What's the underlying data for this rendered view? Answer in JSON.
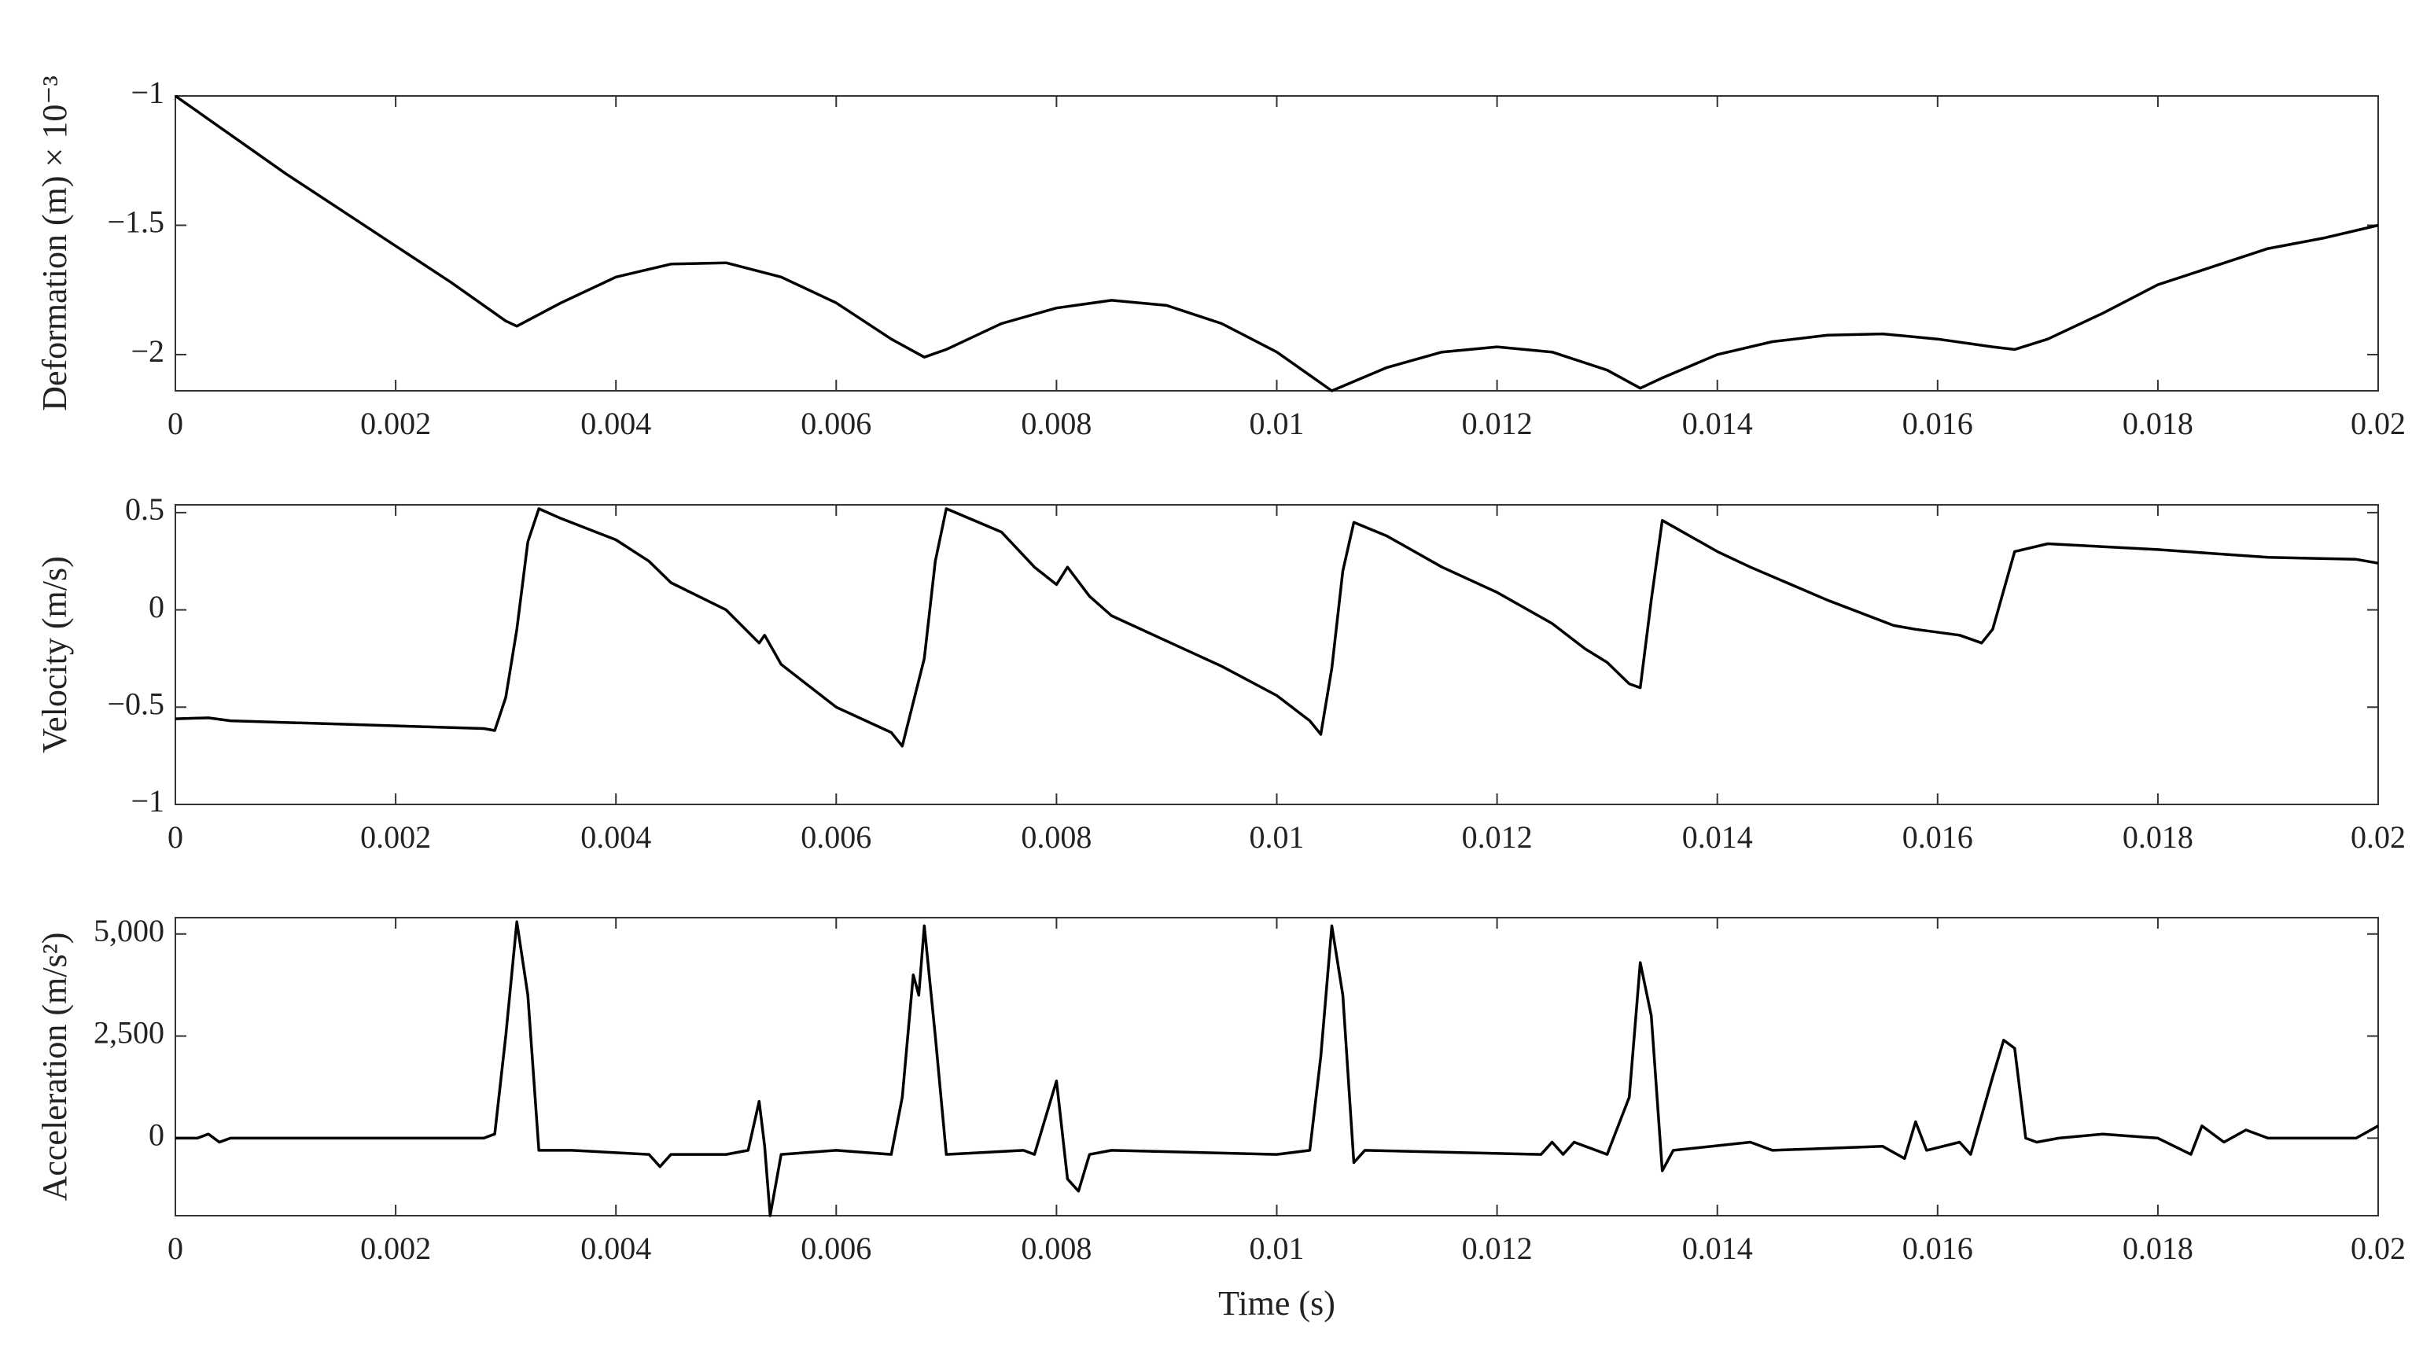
{
  "chart_data": [
    {
      "type": "line",
      "ylabel": "Deformation (m) × 10⁻³",
      "color": "#000000",
      "x": [
        0,
        0.0005,
        0.001,
        0.0015,
        0.002,
        0.0025,
        0.003,
        0.0031,
        0.0035,
        0.004,
        0.0045,
        0.005,
        0.0055,
        0.006,
        0.0065,
        0.0068,
        0.007,
        0.0075,
        0.008,
        0.0085,
        0.009,
        0.0095,
        0.01,
        0.0105,
        0.011,
        0.0115,
        0.012,
        0.0125,
        0.013,
        0.0133,
        0.0135,
        0.014,
        0.0145,
        0.015,
        0.0155,
        0.016,
        0.0165,
        0.0167,
        0.017,
        0.0175,
        0.018,
        0.0185,
        0.019,
        0.0195,
        0.02
      ],
      "values": [
        -1.0,
        -1.15,
        -1.3,
        -1.44,
        -1.58,
        -1.72,
        -1.87,
        -1.89,
        -1.8,
        -1.7,
        -1.65,
        -1.645,
        -1.7,
        -1.8,
        -1.94,
        -2.01,
        -1.98,
        -1.88,
        -1.82,
        -1.79,
        -1.81,
        -1.88,
        -1.99,
        -2.14,
        -2.05,
        -1.99,
        -1.97,
        -1.99,
        -2.06,
        -2.13,
        -2.09,
        -2.0,
        -1.95,
        -1.925,
        -1.92,
        -1.94,
        -1.97,
        -1.98,
        -1.94,
        -1.84,
        -1.73,
        -1.66,
        -1.59,
        -1.55,
        -1.5
      ],
      "xlim": [
        0,
        0.02
      ],
      "xticks": [
        0,
        0.002,
        0.004,
        0.006,
        0.008,
        0.01,
        0.012,
        0.014,
        0.016,
        0.018,
        0.02
      ],
      "ylim": [
        -2.14,
        -1
      ],
      "yticks": [
        {
          "value": -2,
          "label": "−2"
        },
        {
          "value": -1.5,
          "label": "−1.5"
        },
        {
          "value": -1,
          "label": "−1"
        }
      ]
    },
    {
      "type": "line",
      "ylabel": "Velocity (m/s)",
      "color": "#000000",
      "x": [
        0,
        0.0003,
        0.0005,
        0.0028,
        0.0029,
        0.003,
        0.0031,
        0.0032,
        0.0033,
        0.0035,
        0.004,
        0.0043,
        0.0045,
        0.005,
        0.0053,
        0.00535,
        0.0055,
        0.006,
        0.0065,
        0.0066,
        0.0068,
        0.0069,
        0.007,
        0.0075,
        0.0078,
        0.008,
        0.0081,
        0.0083,
        0.0085,
        0.009,
        0.0095,
        0.01,
        0.0103,
        0.0104,
        0.0105,
        0.0106,
        0.0107,
        0.011,
        0.0115,
        0.012,
        0.0125,
        0.0128,
        0.013,
        0.0132,
        0.0133,
        0.0134,
        0.0135,
        0.014,
        0.0143,
        0.015,
        0.0156,
        0.0158,
        0.0162,
        0.0164,
        0.0165,
        0.0167,
        0.017,
        0.018,
        0.019,
        0.0198,
        0.02
      ],
      "values": [
        -0.56,
        -0.555,
        -0.57,
        -0.61,
        -0.62,
        -0.45,
        -0.1,
        0.35,
        0.52,
        0.47,
        0.36,
        0.25,
        0.14,
        0.0,
        -0.17,
        -0.13,
        -0.28,
        -0.5,
        -0.63,
        -0.7,
        -0.25,
        0.25,
        0.52,
        0.4,
        0.22,
        0.13,
        0.22,
        0.07,
        -0.03,
        -0.16,
        -0.29,
        -0.44,
        -0.57,
        -0.64,
        -0.3,
        0.2,
        0.45,
        0.38,
        0.22,
        0.09,
        -0.07,
        -0.2,
        -0.27,
        -0.38,
        -0.4,
        0.05,
        0.46,
        0.3,
        0.22,
        0.05,
        -0.08,
        -0.1,
        -0.13,
        -0.17,
        -0.1,
        0.3,
        0.34,
        0.31,
        0.27,
        0.26,
        0.24
      ],
      "xlim": [
        0,
        0.02
      ],
      "xticks": [
        0,
        0.002,
        0.004,
        0.006,
        0.008,
        0.01,
        0.012,
        0.014,
        0.016,
        0.018,
        0.02
      ],
      "ylim": [
        -1,
        0.54
      ],
      "yticks": [
        {
          "value": -1,
          "label": "−1"
        },
        {
          "value": -0.5,
          "label": "−0.5"
        },
        0,
        0.5
      ]
    },
    {
      "type": "line",
      "ylabel": "Acceleration (m/s²)",
      "xlabel": "Time (s)",
      "color": "#000000",
      "x": [
        0,
        0.0002,
        0.0003,
        0.0004,
        0.0005,
        0.0028,
        0.0029,
        0.003,
        0.0031,
        0.0032,
        0.0033,
        0.0036,
        0.0043,
        0.0044,
        0.0045,
        0.005,
        0.0052,
        0.0053,
        0.00535,
        0.0054,
        0.0055,
        0.006,
        0.0065,
        0.0066,
        0.0067,
        0.00675,
        0.0068,
        0.0069,
        0.007,
        0.0077,
        0.0078,
        0.008,
        0.0081,
        0.0082,
        0.0083,
        0.0085,
        0.01,
        0.0103,
        0.0104,
        0.0105,
        0.0106,
        0.0107,
        0.0108,
        0.0124,
        0.0125,
        0.0126,
        0.0127,
        0.013,
        0.0132,
        0.0133,
        0.0134,
        0.0135,
        0.0136,
        0.0143,
        0.0145,
        0.0155,
        0.0157,
        0.0158,
        0.0159,
        0.0162,
        0.0163,
        0.0165,
        0.0166,
        0.0167,
        0.0168,
        0.0169,
        0.0171,
        0.0175,
        0.018,
        0.0183,
        0.0184,
        0.0186,
        0.0188,
        0.019,
        0.0198,
        0.02
      ],
      "values": [
        0,
        0,
        100,
        -100,
        0,
        0,
        100,
        2500,
        5300,
        3500,
        -300,
        -300,
        -400,
        -700,
        -400,
        -400,
        -300,
        900,
        -200,
        -1900,
        -400,
        -300,
        -400,
        1000,
        4000,
        3500,
        5200,
        2500,
        -400,
        -300,
        -400,
        1400,
        -1000,
        -1300,
        -400,
        -300,
        -400,
        -300,
        2000,
        5200,
        3500,
        -600,
        -300,
        -400,
        -100,
        -400,
        -100,
        -400,
        1000,
        4300,
        3000,
        -800,
        -300,
        -100,
        -300,
        -200,
        -500,
        400,
        -300,
        -100,
        -400,
        1500,
        2400,
        2200,
        0,
        -100,
        0,
        100,
        0,
        -400,
        300,
        -100,
        200,
        0,
        0,
        300
      ],
      "xlim": [
        0,
        0.02
      ],
      "xticks": [
        0,
        0.002,
        0.004,
        0.006,
        0.008,
        0.01,
        0.012,
        0.014,
        0.016,
        0.018,
        0.02
      ],
      "ylim": [
        -1900,
        5400
      ],
      "yticks": [
        0,
        {
          "value": 2500,
          "label": "2,500"
        },
        {
          "value": 5000,
          "label": "5,000"
        }
      ]
    }
  ]
}
